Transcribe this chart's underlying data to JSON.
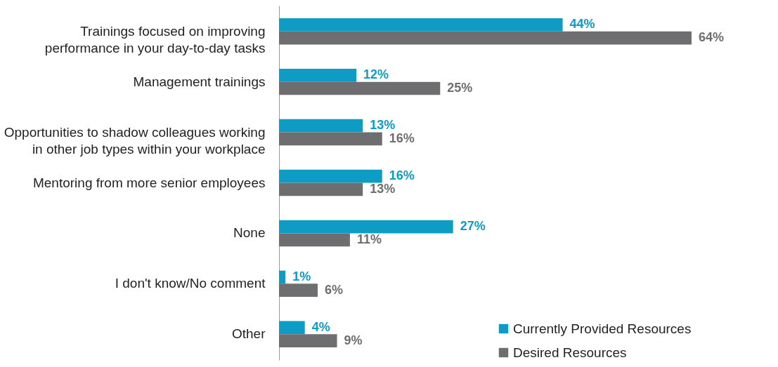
{
  "chart_data": {
    "type": "bar",
    "orientation": "horizontal",
    "categories": [
      "Trainings focused on improving performance in your day-to-day tasks",
      "Management trainings",
      "Opportunities to shadow colleagues working in other job types within your workplace",
      "Mentoring from more senior employees",
      "None",
      "I don't know/No comment",
      "Other"
    ],
    "series": [
      {
        "name": "Currently Provided Resources",
        "color": "#0e9bc4",
        "values": [
          44,
          12,
          13,
          16,
          27,
          1,
          4
        ],
        "value_labels": [
          "44%",
          "12%",
          "13%",
          "16%",
          "27%",
          "1%",
          "4%"
        ]
      },
      {
        "name": "Desired Resources",
        "color": "#6e6e70",
        "values": [
          64,
          25,
          16,
          13,
          11,
          6,
          9
        ],
        "value_labels": [
          "64%",
          "25%",
          "16%",
          "13%",
          "11%",
          "6%",
          "9%"
        ]
      }
    ],
    "legend": "bottom right",
    "grid": false
  }
}
